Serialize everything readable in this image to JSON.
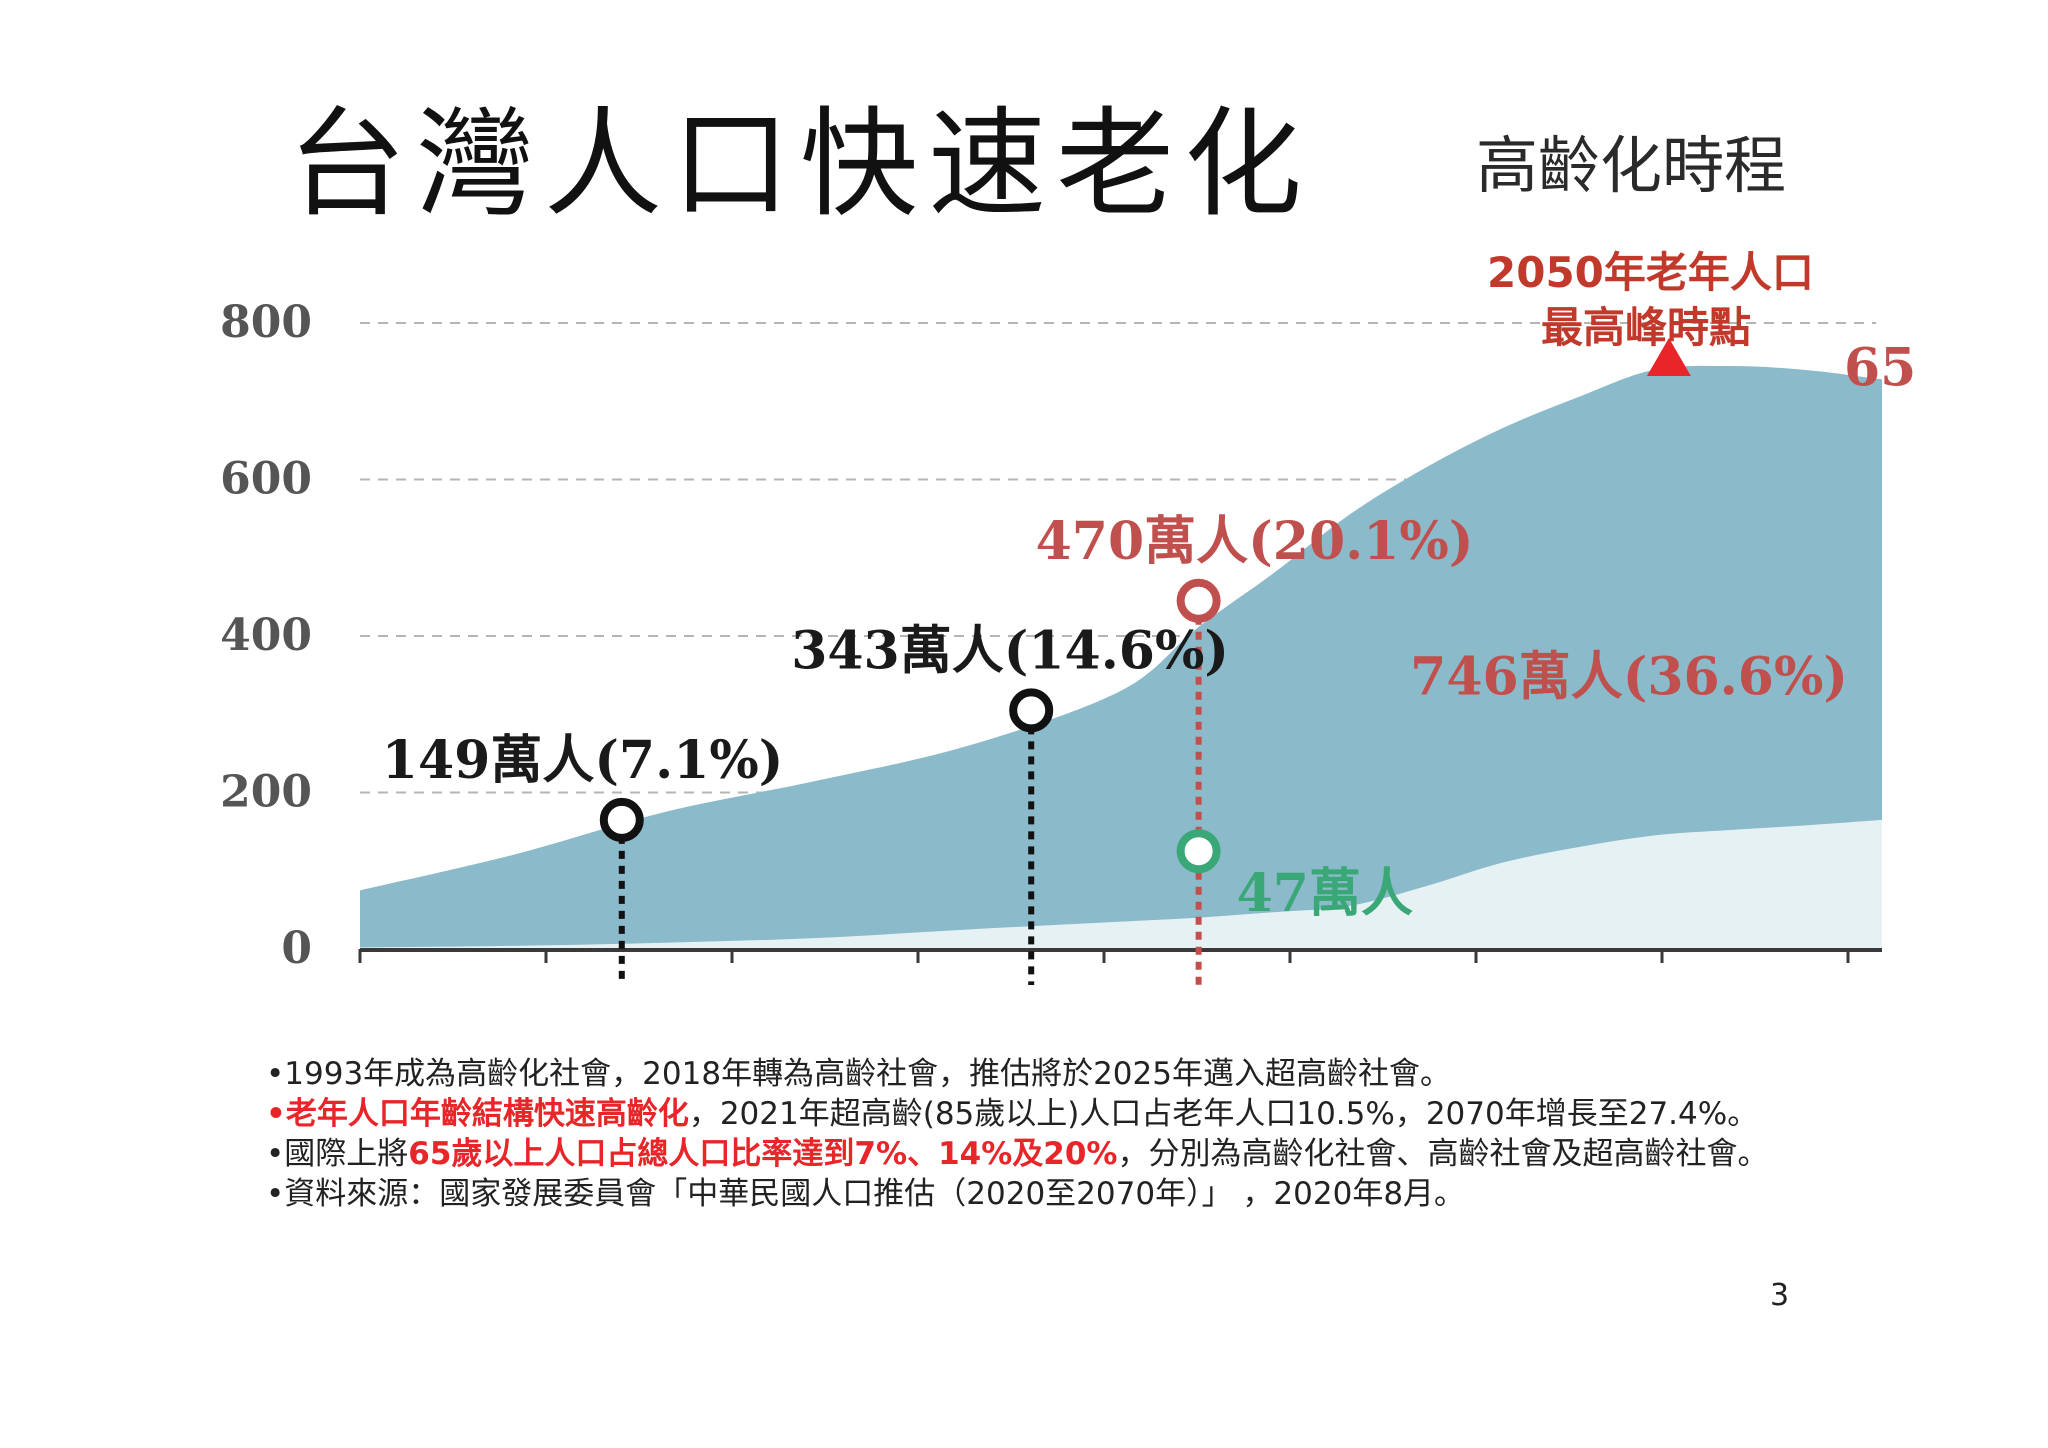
{
  "slide": {
    "title": "台灣人口快速老化",
    "subtitle": "高齡化時程",
    "page_number": "3"
  },
  "colors": {
    "elderly_area": "#8bbacb",
    "oldest_old_area": "#e6f1f4",
    "marker_dark": "#111111",
    "marker_red": "#c0504d",
    "marker_green": "#3aa776",
    "highlight_text": "#e8262a"
  },
  "chart_data": {
    "type": "area",
    "title": "",
    "xlabel": "",
    "ylabel": "",
    "ylim": [
      0,
      800
    ],
    "yticks": [
      "0",
      "200",
      "400",
      "600",
      "800"
    ],
    "grid": "horizontal-dashed",
    "series": [
      {
        "key": "aged65",
        "x": [
          0,
          0.1,
          0.2,
          0.3,
          0.4,
          0.5,
          0.55,
          0.6,
          0.65,
          0.7,
          0.75,
          0.8,
          0.85,
          0.9,
          0.95,
          1.0
        ],
        "values": [
          75,
          120,
          175,
          215,
          260,
          330,
          410,
          480,
          555,
          615,
          665,
          705,
          740,
          745,
          740,
          728
        ]
      },
      {
        "key": "aged85",
        "x": [
          0,
          0.1,
          0.2,
          0.3,
          0.4,
          0.5,
          0.55,
          0.6,
          0.65,
          0.7,
          0.75,
          0.8,
          0.85,
          0.9,
          0.95,
          1.0
        ],
        "values": [
          2,
          4,
          8,
          14,
          25,
          35,
          40,
          47,
          55,
          80,
          110,
          130,
          145,
          152,
          158,
          165
        ]
      }
    ],
    "markers": [
      {
        "label": "149萬人(7.1%)",
        "x": 0.172,
        "y": 165,
        "color": "dark",
        "guide": true,
        "label_pos": "above-left"
      },
      {
        "label": "343萬人(14.6%)",
        "x": 0.441,
        "y": 305,
        "color": "dark",
        "guide": true,
        "label_pos": "above-left"
      },
      {
        "label": "470萬人(20.1%)",
        "x": 0.551,
        "y": 445,
        "color": "red",
        "guide": true,
        "label_pos": "above-right"
      },
      {
        "label": "47萬人",
        "x": 0.551,
        "y": 125,
        "color": "green",
        "guide": false,
        "label_pos": "below-right"
      }
    ],
    "region_labels": [
      {
        "label": "746萬人(36.6%)",
        "x": 0.69,
        "y": 325,
        "color": "red"
      },
      {
        "label": "65",
        "x": 0.975,
        "y": 720,
        "color": "red"
      }
    ],
    "peak": {
      "line1": "2050年老年人口",
      "line2": "最高峰時點",
      "x": 0.86,
      "y": 745
    }
  },
  "notes": [
    {
      "parts": [
        {
          "text": "•1993年成為高齡化社會，2018年轉為高齡社會，推估將於2025年邁入超高齡社會。",
          "hl": false
        }
      ]
    },
    {
      "parts": [
        {
          "text": "•老年人口年齡結構快速高齡化",
          "hl": true
        },
        {
          "text": "，2021年超高齡(85歲以上)人口占老年人口10.5%，2070年增長至27.4%。",
          "hl": false
        }
      ]
    },
    {
      "parts": [
        {
          "text": "•國際上將",
          "hl": false
        },
        {
          "text": "65歲以上人口占總人口比率達到7%、14%及20%",
          "hl": true
        },
        {
          "text": "，分別為高齡化社會、高齡社會及超高齡社會。",
          "hl": false
        }
      ]
    },
    {
      "parts": [
        {
          "text": "•資料來源：國家發展委員會「中華民國人口推估（2020至2070年）」 ，2020年8月。",
          "hl": false
        }
      ]
    }
  ]
}
